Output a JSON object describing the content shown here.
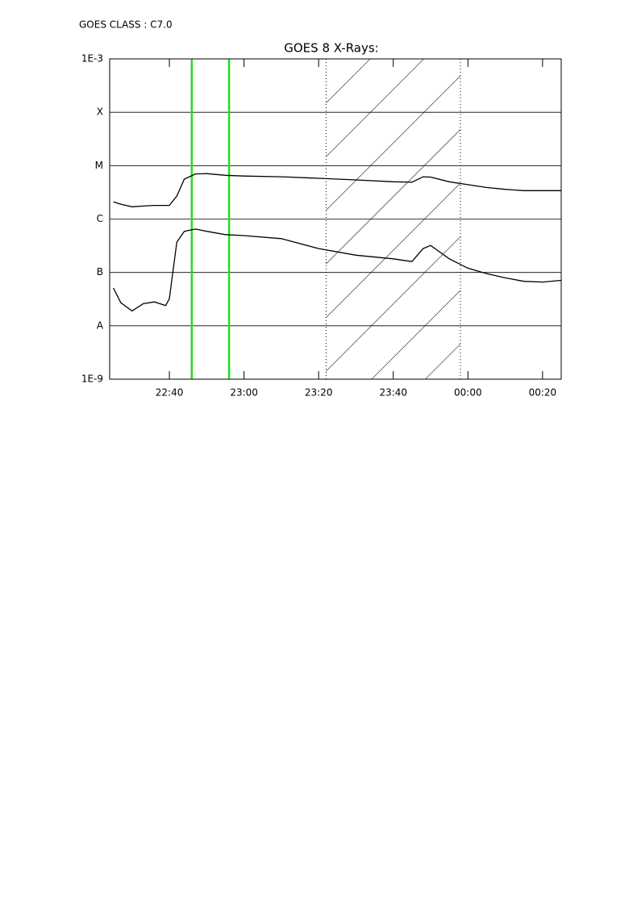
{
  "chart_data": {
    "type": "line",
    "header": "GOES CLASS : C7.0",
    "title": "GOES 8 X-Rays:",
    "log_y": true,
    "grid": true,
    "x": [
      "22:25",
      "22:27",
      "22:30",
      "22:33",
      "22:36",
      "22:39",
      "22:40",
      "22:42",
      "22:44",
      "22:47",
      "22:50",
      "22:55",
      "23:00",
      "23:10",
      "23:20",
      "23:30",
      "23:40",
      "23:45",
      "23:48",
      "23:50",
      "23:55",
      "00:00",
      "00:05",
      "00:10",
      "00:15",
      "00:20",
      "00:25"
    ],
    "xlim": [
      "22:24",
      "00:25"
    ],
    "xticks": [
      "22:40",
      "23:00",
      "23:20",
      "23:40",
      "00:00",
      "00:20"
    ],
    "ylim": [
      1e-09,
      0.001
    ],
    "yticks": [
      {
        "value": 0.001,
        "label": "1E-3"
      },
      {
        "value": 0.0001,
        "label": "X"
      },
      {
        "value": 1e-05,
        "label": "M"
      },
      {
        "value": 1e-06,
        "label": "C"
      },
      {
        "value": 1e-07,
        "label": "B"
      },
      {
        "value": 1e-08,
        "label": "A"
      },
      {
        "value": 1e-09,
        "label": "1E-9"
      }
    ],
    "series": [
      {
        "color": "#000000",
        "values": [
          2.1e-06,
          1.9e-06,
          1.7e-06,
          1.75e-06,
          1.8e-06,
          1.8e-06,
          1.8e-06,
          2.7e-06,
          5.6e-06,
          7e-06,
          7.1e-06,
          6.6e-06,
          6.4e-06,
          6.2e-06,
          5.8e-06,
          5.4e-06,
          5e-06,
          4.9e-06,
          6.2e-06,
          6.1e-06,
          5e-06,
          4.4e-06,
          3.9e-06,
          3.6e-06,
          3.4e-06,
          3.4e-06,
          3.4e-06
        ]
      },
      {
        "color": "#000000",
        "values": [
          5.1e-08,
          2.7e-08,
          1.9e-08,
          2.6e-08,
          2.8e-08,
          2.4e-08,
          3.2e-08,
          3.7e-07,
          5.9e-07,
          6.5e-07,
          5.9e-07,
          5.1e-07,
          4.9e-07,
          4.3e-07,
          2.8e-07,
          2.1e-07,
          1.8e-07,
          1.6e-07,
          2.8e-07,
          3.2e-07,
          1.8e-07,
          1.2e-07,
          9.5e-08,
          7.9e-08,
          6.8e-08,
          6.6e-08,
          7.1e-08
        ]
      }
    ],
    "marker_lines": [
      "22:46",
      "22:56"
    ],
    "marker_color": "#22dd22",
    "shaded_interval": [
      "23:22",
      "23:58"
    ]
  }
}
